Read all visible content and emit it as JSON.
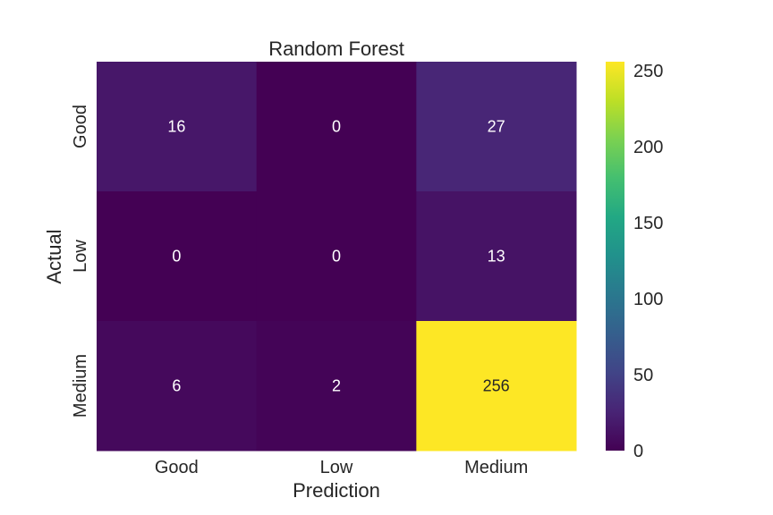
{
  "chart_data": {
    "type": "heatmap",
    "title": "Random Forest",
    "xlabel": "Prediction",
    "ylabel": "Actual",
    "x_categories": [
      "Good",
      "Low",
      "Medium"
    ],
    "y_categories": [
      "Good",
      "Low",
      "Medium"
    ],
    "matrix": [
      [
        16,
        0,
        27
      ],
      [
        0,
        0,
        13
      ],
      [
        6,
        2,
        256
      ]
    ],
    "colormap": "viridis",
    "vmin": 0,
    "vmax": 256,
    "colorbar_ticks": [
      "0",
      "50",
      "100",
      "150",
      "200",
      "250"
    ],
    "colorbar_tick_values": [
      0,
      50,
      100,
      150,
      200,
      250
    ],
    "grid": false
  }
}
